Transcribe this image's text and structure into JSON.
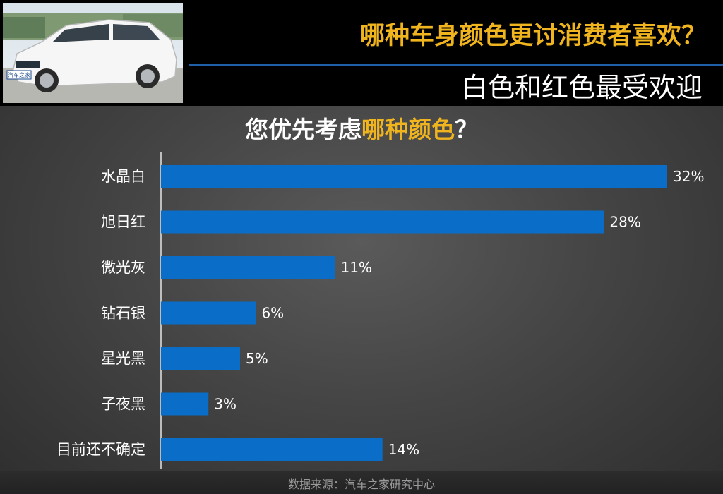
{
  "header": {
    "photo_badge": "汽车之家",
    "headline": "哪种车身颜色更讨消费者喜欢？",
    "subheadline": "白色和红色最受欢迎"
  },
  "chart_data": {
    "type": "bar",
    "orientation": "horizontal",
    "title_parts": [
      "您优先考虑",
      "哪种颜色",
      "？"
    ],
    "categories": [
      "水晶白",
      "旭日红",
      "微光灰",
      "钻石银",
      "星光黑",
      "子夜黑",
      "目前还不确定"
    ],
    "values": [
      32,
      28,
      11,
      6,
      5,
      3,
      14
    ],
    "value_labels": [
      "32%",
      "28%",
      "11%",
      "6%",
      "5%",
      "3%",
      "14%"
    ],
    "unit": "%",
    "xlim": [
      0,
      32
    ],
    "grid": false,
    "legend": "none",
    "bar_color": "#0a6ec8"
  },
  "source_note": "数据来源：汽车之家研究中心",
  "colors": {
    "accent": "#f0b41e",
    "rule": "#1e5fa8"
  }
}
